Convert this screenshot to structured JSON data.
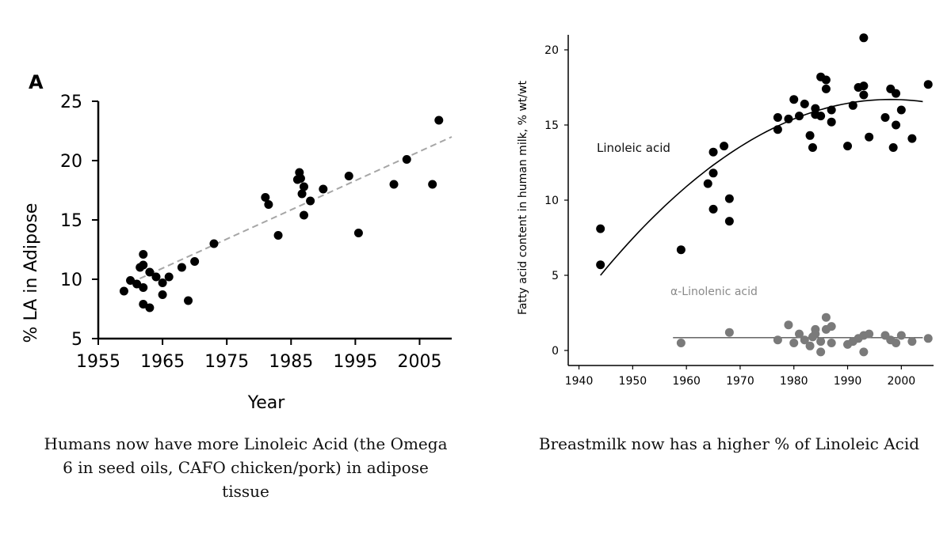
{
  "chart_data": [
    {
      "type": "scatter",
      "panel_label": "A",
      "xlabel": "Year",
      "ylabel": "% LA in Adipose",
      "xlim": [
        1955,
        2010
      ],
      "ylim": [
        5,
        25
      ],
      "x_ticks": [
        1955,
        1965,
        1975,
        1985,
        1995,
        2005
      ],
      "y_ticks": [
        5,
        10,
        15,
        20,
        25
      ],
      "grid": false,
      "trend_line": {
        "style": "dashed",
        "x": [
          1960,
          2010
        ],
        "y": [
          9.7,
          22.0
        ],
        "color": "#a6a6a6"
      },
      "point_color": "#000000",
      "series": [
        {
          "x": [
            1959,
            1960,
            1961,
            1961.5,
            1962,
            1962,
            1962,
            1962,
            1963,
            1963,
            1964,
            1965,
            1965,
            1966,
            1968,
            1969,
            1970,
            1973,
            1981,
            1981.5,
            1983,
            1986,
            1986.3,
            1986.5,
            1986.7,
            1987,
            1987,
            1988,
            1990,
            1994,
            1995.5,
            2001,
            2003,
            2007,
            2008
          ],
          "y": [
            9.0,
            9.9,
            9.6,
            11.0,
            12.1,
            11.2,
            9.3,
            7.9,
            10.6,
            7.6,
            10.2,
            9.7,
            8.7,
            10.2,
            11.0,
            8.2,
            11.5,
            13.0,
            16.9,
            16.3,
            13.7,
            18.4,
            19.0,
            18.5,
            17.2,
            17.8,
            15.4,
            16.6,
            17.6,
            18.7,
            13.9,
            18.0,
            20.1,
            18.0,
            23.4
          ]
        }
      ]
    },
    {
      "type": "scatter",
      "xlabel": "",
      "ylabel": "Fatty acid content in human milk, % wt/wt",
      "xlim": [
        1938,
        2006
      ],
      "ylim": [
        -1,
        21
      ],
      "x_ticks": [
        1940,
        1950,
        1960,
        1970,
        1980,
        1990,
        2000
      ],
      "y_ticks": [
        0,
        5,
        10,
        15,
        20
      ],
      "grid": false,
      "series": [
        {
          "name": "Linoleic acid",
          "color": "#000000",
          "fit": "curve",
          "x": [
            1944,
            1944,
            1959,
            1964,
            1965,
            1965,
            1965,
            1967,
            1968,
            1968,
            1977,
            1977,
            1979,
            1980,
            1981,
            1982,
            1983,
            1983.5,
            1984,
            1984,
            1985,
            1985,
            1986,
            1986,
            1987,
            1987,
            1990,
            1991,
            1992,
            1993,
            1993,
            1993,
            1994,
            1997,
            1998,
            1998.5,
            1999,
            1999,
            2000,
            2002,
            2005
          ],
          "y": [
            8.1,
            5.7,
            6.7,
            11.1,
            13.2,
            11.8,
            9.4,
            13.6,
            10.1,
            8.6,
            15.5,
            14.7,
            15.4,
            16.7,
            15.6,
            16.4,
            14.3,
            13.5,
            16.1,
            15.7,
            18.2,
            15.6,
            18.0,
            17.4,
            16.0,
            15.2,
            13.6,
            16.3,
            17.5,
            20.8,
            17.6,
            17.0,
            14.2,
            15.5,
            17.4,
            13.5,
            15.0,
            17.1,
            16.0,
            14.1,
            17.7
          ]
        },
        {
          "name": "α-Linolenic acid",
          "color": "#7a7a7a",
          "fit": "flat",
          "x": [
            1959,
            1968,
            1977,
            1979,
            1980,
            1981,
            1982,
            1983,
            1983.5,
            1984,
            1984,
            1985,
            1985,
            1986,
            1986,
            1987,
            1987,
            1990,
            1991,
            1992,
            1993,
            1993,
            1994,
            1997,
            1998,
            1999,
            2000,
            2002,
            2005
          ],
          "y": [
            0.5,
            1.2,
            0.7,
            1.7,
            0.5,
            1.1,
            0.7,
            0.3,
            0.9,
            1.4,
            1.1,
            0.6,
            -0.1,
            2.2,
            1.4,
            1.6,
            0.5,
            0.4,
            0.6,
            0.8,
            1.0,
            -0.1,
            1.1,
            1.0,
            0.7,
            0.5,
            1.0,
            0.6,
            0.8
          ]
        }
      ]
    }
  ],
  "captions": {
    "left": "Humans now have more Linoleic Acid (the Omega 6 in seed oils, CAFO chicken/pork) in adipose tissue",
    "right": "Breastmilk now has a higher % of Linoleic Acid"
  }
}
